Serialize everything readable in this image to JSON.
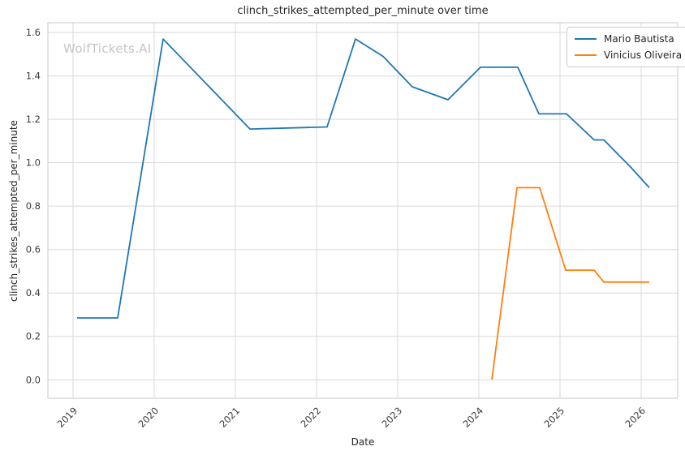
{
  "title": "clinch_strikes_attempted_per_minute over time",
  "watermark": "WolfTickets.AI",
  "colors": {
    "series_blue": "#1f77b4",
    "series_orange": "#ff7f0e",
    "grid": "#d9d9d9",
    "spine": "#c9c9c9",
    "text": "#262626",
    "tick_text": "#3b3b3b",
    "watermark": "#c5c5c5",
    "background": "#ffffff"
  },
  "chart_data": {
    "type": "line",
    "title": "clinch_strikes_attempted_per_minute over time",
    "xlabel": "Date",
    "ylabel": "clinch_strikes_attempted_per_minute",
    "x_ticks": [
      2019,
      2020,
      2021,
      2022,
      2023,
      2024,
      2025,
      2026
    ],
    "y_ticks": [
      0.0,
      0.2,
      0.4,
      0.6,
      0.8,
      1.0,
      1.2,
      1.4,
      1.6
    ],
    "xlim": [
      2018.69,
      2026.45
    ],
    "ylim": [
      -0.085,
      1.645
    ],
    "grid": true,
    "legend_position": "upper right",
    "series": [
      {
        "name": "Mario Bautista",
        "color": "#1f77b4",
        "x": [
          2019.05,
          2019.55,
          2020.11,
          2021.18,
          2022.13,
          2022.48,
          2022.82,
          2023.18,
          2023.62,
          2024.02,
          2024.48,
          2024.74,
          2025.08,
          2025.42,
          2025.54,
          2025.87,
          2026.1
        ],
        "y": [
          0.285,
          0.285,
          1.57,
          1.155,
          1.165,
          1.57,
          1.49,
          1.35,
          1.29,
          1.44,
          1.44,
          1.225,
          1.225,
          1.105,
          1.105,
          0.98,
          0.885
        ]
      },
      {
        "name": "Vinicius Oliveira",
        "color": "#ff7f0e",
        "x": [
          2024.16,
          2024.47,
          2024.75,
          2025.07,
          2025.42,
          2025.54,
          2026.1
        ],
        "y": [
          0.0,
          0.885,
          0.885,
          0.505,
          0.505,
          0.45,
          0.45
        ]
      }
    ]
  }
}
